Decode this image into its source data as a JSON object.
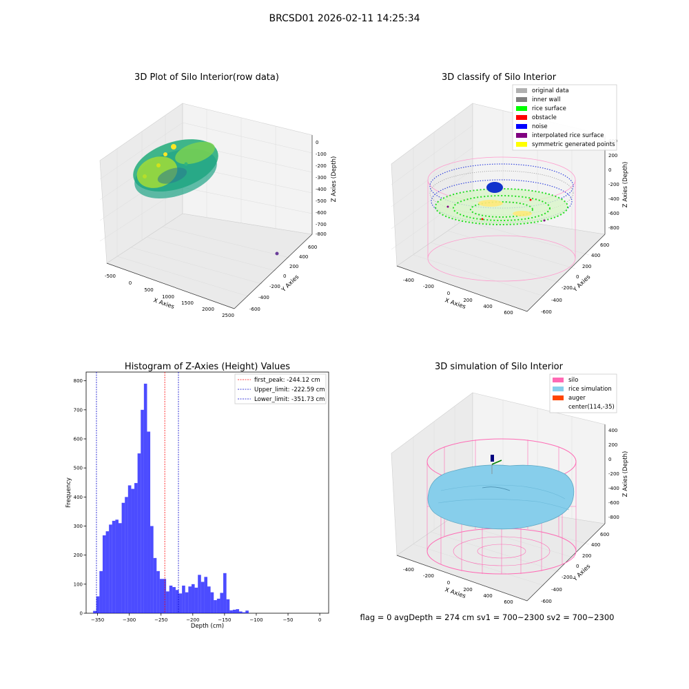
{
  "figure": {
    "title": "BRCSD01 2026-02-11 14:25:34",
    "footer": "flag = 0     avgDepth = 274 cm  sv1 = 700~2300  sv2 = 700~2300"
  },
  "panels": {
    "raw": {
      "title": "3D Plot of Silo Interior(row data)",
      "x_label": "X Axies",
      "y_label": "Y Axies",
      "z_label": "Z Axies (Depth)",
      "x_ticks": [
        "-500",
        "0",
        "500",
        "1000",
        "1500",
        "2000",
        "2500"
      ],
      "y_ticks": [
        "-600",
        "-400",
        "-200",
        "0",
        "200",
        "400",
        "600"
      ],
      "z_ticks": [
        "0",
        "-100",
        "-200",
        "-300",
        "-400",
        "-500",
        "-600",
        "-700",
        "-800"
      ]
    },
    "classify": {
      "title": "3D classify of Silo Interior",
      "x_label": "X Axies",
      "y_label": "Y Axies",
      "z_label": "Z Axies (Depth)",
      "x_ticks": [
        "-400",
        "-200",
        "0",
        "200",
        "400",
        "600"
      ],
      "y_ticks": [
        "-600",
        "-400",
        "-200",
        "0",
        "200",
        "400",
        "600"
      ],
      "z_ticks": [
        "400",
        "200",
        "0",
        "-200",
        "-400",
        "-600",
        "-800"
      ],
      "legend": [
        {
          "label": "original data",
          "color": "#b0b0b0"
        },
        {
          "label": "inner wall",
          "color": "#808080"
        },
        {
          "label": "rice surface",
          "color": "#00ff00"
        },
        {
          "label": "obstacle",
          "color": "#ff0000"
        },
        {
          "label": "noise",
          "color": "#0000ff"
        },
        {
          "label": "interpolated rice surface",
          "color": "#800080"
        },
        {
          "label": "symmetric generated points",
          "color": "#ffff00"
        }
      ]
    },
    "simulation": {
      "title": "3D simulation of Silo Interior",
      "x_label": "X Axies",
      "y_label": "Y Axies",
      "z_label": "Z Axies (Depth)",
      "x_ticks": [
        "-400",
        "-200",
        "0",
        "200",
        "400",
        "600"
      ],
      "y_ticks": [
        "-600",
        "-400",
        "-200",
        "0",
        "200",
        "400",
        "600"
      ],
      "z_ticks": [
        "400",
        "200",
        "0",
        "-200",
        "-400",
        "-600",
        "-800"
      ],
      "legend": [
        {
          "label": "silo",
          "color": "#ff69b4"
        },
        {
          "label": "rice simulation",
          "color": "#87ceeb"
        },
        {
          "label": "auger",
          "color": "#ff4500"
        },
        {
          "label": "center(114,-35)",
          "color": ""
        }
      ]
    }
  },
  "chart_data": [
    {
      "type": "bar",
      "title": "Histogram of Z-Axies (Height) Values",
      "xlabel": "Depth (cm)",
      "ylabel": "Frequency",
      "xlim": [
        -368,
        14
      ],
      "ylim": [
        0,
        830
      ],
      "xticks": [
        -350,
        -300,
        -250,
        -200,
        -150,
        -100,
        -50,
        0
      ],
      "yticks": [
        0,
        100,
        200,
        300,
        400,
        500,
        600,
        700,
        800
      ],
      "bin_width": 5.0,
      "bins": [
        {
          "x0": -357,
          "v": 8
        },
        {
          "x0": -352,
          "v": 58
        },
        {
          "x0": -347,
          "v": 145
        },
        {
          "x0": -342,
          "v": 268
        },
        {
          "x0": -337,
          "v": 282
        },
        {
          "x0": -332,
          "v": 305
        },
        {
          "x0": -327,
          "v": 318
        },
        {
          "x0": -322,
          "v": 322
        },
        {
          "x0": -317,
          "v": 310
        },
        {
          "x0": -312,
          "v": 380
        },
        {
          "x0": -307,
          "v": 400
        },
        {
          "x0": -302,
          "v": 440
        },
        {
          "x0": -297,
          "v": 428
        },
        {
          "x0": -292,
          "v": 448
        },
        {
          "x0": -287,
          "v": 550
        },
        {
          "x0": -282,
          "v": 700
        },
        {
          "x0": -277,
          "v": 790
        },
        {
          "x0": -272,
          "v": 625
        },
        {
          "x0": -267,
          "v": 300
        },
        {
          "x0": -262,
          "v": 190
        },
        {
          "x0": -257,
          "v": 145
        },
        {
          "x0": -252,
          "v": 118
        },
        {
          "x0": -247,
          "v": 118
        },
        {
          "x0": -242,
          "v": 75
        },
        {
          "x0": -237,
          "v": 95
        },
        {
          "x0": -232,
          "v": 90
        },
        {
          "x0": -227,
          "v": 80
        },
        {
          "x0": -222,
          "v": 68
        },
        {
          "x0": -217,
          "v": 95
        },
        {
          "x0": -212,
          "v": 72
        },
        {
          "x0": -207,
          "v": 92
        },
        {
          "x0": -202,
          "v": 100
        },
        {
          "x0": -197,
          "v": 88
        },
        {
          "x0": -192,
          "v": 132
        },
        {
          "x0": -187,
          "v": 108
        },
        {
          "x0": -182,
          "v": 125
        },
        {
          "x0": -177,
          "v": 92
        },
        {
          "x0": -172,
          "v": 72
        },
        {
          "x0": -167,
          "v": 45
        },
        {
          "x0": -162,
          "v": 50
        },
        {
          "x0": -157,
          "v": 70
        },
        {
          "x0": -152,
          "v": 138
        },
        {
          "x0": -147,
          "v": 48
        },
        {
          "x0": -142,
          "v": 10
        },
        {
          "x0": -137,
          "v": 12
        },
        {
          "x0": -132,
          "v": 14
        },
        {
          "x0": -127,
          "v": 6
        },
        {
          "x0": -122,
          "v": 3
        },
        {
          "x0": -117,
          "v": 9
        }
      ],
      "color": "#0000ff",
      "reference_lines": [
        {
          "name": "first_peak: -244.12 cm",
          "x": -244.12,
          "color": "#ff0000"
        },
        {
          "name": "Upper_limit: -222.59 cm",
          "x": -222.59,
          "color": "#0000cc"
        },
        {
          "name": "Lower_limit: -351.73 cm",
          "x": -351.73,
          "color": "#0000cc"
        }
      ],
      "legend_position": "top-right"
    }
  ]
}
